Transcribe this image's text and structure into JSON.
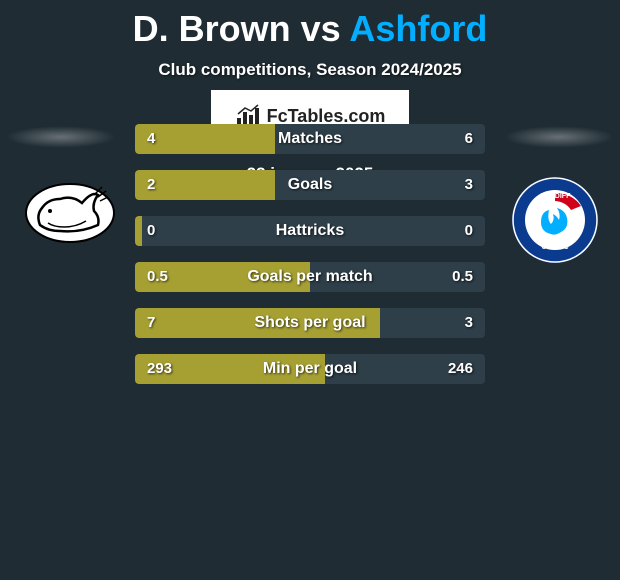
{
  "title": {
    "player1": "D. Brown",
    "vs": " vs ",
    "player2": "Ashford"
  },
  "subtitle": "Club competitions, Season 2024/2025",
  "date": "23 january 2025",
  "branding": {
    "text": "FcTables.com"
  },
  "colors": {
    "background": "#1f2c33",
    "player1_bar": "#a6a033",
    "player2_bar": "#2e3f49",
    "title_p1": "#ffffff",
    "title_p2": "#02aeff",
    "text": "#ffffff",
    "bar_border": "#445761"
  },
  "layout": {
    "stat_row_width": 350,
    "stat_row_height": 30,
    "stat_row_gap": 16,
    "value_fontsize": 15,
    "label_fontsize": 16,
    "title_fontsize": 36,
    "subtitle_fontsize": 17
  },
  "logos": {
    "left": {
      "name": "derby-county-logo",
      "bg": "#ffffff",
      "accent": "#000000"
    },
    "right": {
      "name": "cardiff-city-logo",
      "bg": "#ffffff",
      "ring": "#0b3b8f",
      "center": "#02aeff",
      "accent_red": "#d0021b"
    }
  },
  "stats": [
    {
      "label": "Matches",
      "left_val": "4",
      "right_val": "6",
      "left_pct": 40,
      "right_pct": 60
    },
    {
      "label": "Goals",
      "left_val": "2",
      "right_val": "3",
      "left_pct": 40,
      "right_pct": 60
    },
    {
      "label": "Hattricks",
      "left_val": "0",
      "right_val": "0",
      "left_pct": 2,
      "right_pct": 98
    },
    {
      "label": "Goals per match",
      "left_val": "0.5",
      "right_val": "0.5",
      "left_pct": 50,
      "right_pct": 50
    },
    {
      "label": "Shots per goal",
      "left_val": "7",
      "right_val": "3",
      "left_pct": 70,
      "right_pct": 30
    },
    {
      "label": "Min per goal",
      "left_val": "293",
      "right_val": "246",
      "left_pct": 54.4,
      "right_pct": 45.6
    }
  ]
}
